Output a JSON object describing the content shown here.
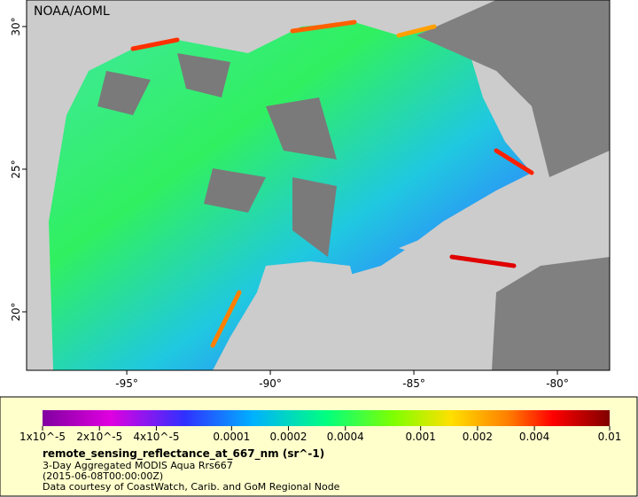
{
  "map": {
    "credit": "NOAA/AOML",
    "lon_range": [
      -98.49,
      -78.18
    ],
    "lat_range": [
      17.95,
      30.93
    ],
    "lon_ticks": [
      {
        "value": -95,
        "label": "-95°"
      },
      {
        "value": -90,
        "label": "-90°"
      },
      {
        "value": -85,
        "label": "-85°"
      },
      {
        "value": -80,
        "label": "-80°"
      }
    ],
    "lat_ticks": [
      {
        "value": 20,
        "label": "20°"
      },
      {
        "value": 25,
        "label": "25°"
      },
      {
        "value": 30,
        "label": "30°"
      }
    ]
  },
  "colorbar": {
    "scale": "log",
    "range": [
      1e-05,
      0.01
    ],
    "ticks": [
      {
        "value": 1e-05,
        "label": "1x10^-5"
      },
      {
        "value": 2e-05,
        "label": "2x10^-5"
      },
      {
        "value": 4e-05,
        "label": "4x10^-5"
      },
      0.0001,
      0.0002,
      0.0004,
      0.001,
      0.002,
      0.004,
      0.01
    ]
  },
  "legend": {
    "title": "remote_sensing_reflectance_at_667_nm (sr^-1)",
    "lines": [
      "3-Day Aggregated MODIS Aqua Rrs667",
      "(2015-06-08T00:00:00Z)",
      "Data courtesy of CoastWatch, Carib. and GoM Regional Node"
    ]
  }
}
